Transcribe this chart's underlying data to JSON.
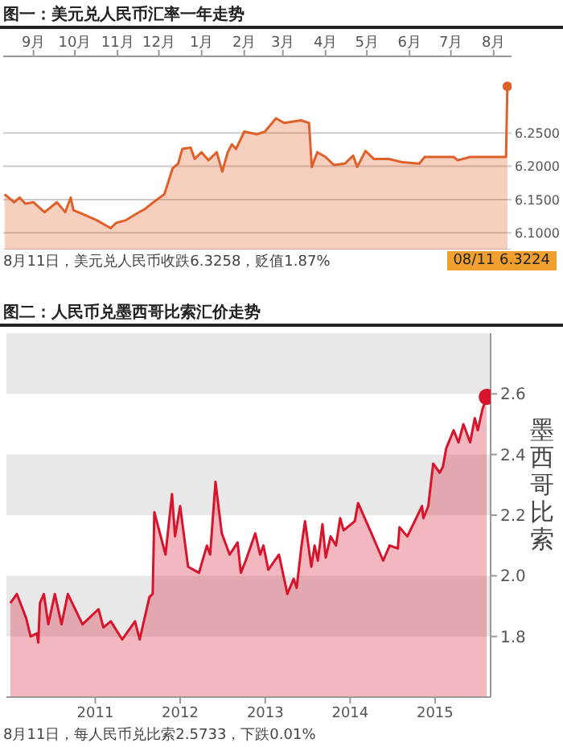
{
  "chart_data": [
    {
      "type": "area",
      "title": "图一：美元兑人民币汇率一年走势",
      "x": [
        "2014-08-11",
        "2014-08-18",
        "2014-08-22",
        "2014-08-26",
        "2014-09-01",
        "2014-09-09",
        "2014-09-18",
        "2014-09-24",
        "2014-09-28",
        "2014-09-30",
        "2014-10-08",
        "2014-10-17",
        "2014-10-27",
        "2014-10-31",
        "2014-11-07",
        "2014-11-15",
        "2014-11-21",
        "2014-11-27",
        "2014-12-05",
        "2014-12-11",
        "2014-12-15",
        "2014-12-18",
        "2014-12-24",
        "2014-12-27",
        "2015-01-01",
        "2015-01-06",
        "2015-01-12",
        "2015-01-16",
        "2015-01-20",
        "2015-01-23",
        "2015-01-26",
        "2015-02-01",
        "2015-02-10",
        "2015-02-16",
        "2015-02-24",
        "2015-03-02",
        "2015-03-14",
        "2015-03-20",
        "2015-03-22",
        "2015-03-26",
        "2015-04-01",
        "2015-04-07",
        "2015-04-15",
        "2015-04-21",
        "2015-04-24",
        "2015-04-30",
        "2015-05-06",
        "2015-05-17",
        "2015-05-27",
        "2015-06-08",
        "2015-06-12",
        "2015-07-03",
        "2015-07-06",
        "2015-07-15",
        "2015-08-10",
        "2015-08-11"
      ],
      "series": [
        {
          "color": "#e0602a",
          "values": [
            6.158,
            6.146,
            6.153,
            6.144,
            6.146,
            6.131,
            6.146,
            6.131,
            6.153,
            6.134,
            6.127,
            6.119,
            6.107,
            6.115,
            6.119,
            6.129,
            6.136,
            6.146,
            6.158,
            6.197,
            6.204,
            6.226,
            6.228,
            6.211,
            6.221,
            6.209,
            6.221,
            6.192,
            6.221,
            6.233,
            6.226,
            6.252,
            6.248,
            6.252,
            6.272,
            6.265,
            6.269,
            6.265,
            6.199,
            6.221,
            6.214,
            6.202,
            6.204,
            6.216,
            6.199,
            6.223,
            6.211,
            6.211,
            6.206,
            6.204,
            6.214,
            6.214,
            6.209,
            6.214,
            6.214,
            6.32
          ]
        }
      ],
      "xlim": [
        "2014-08-10",
        "2015-08-14"
      ],
      "xticks": [
        {
          "value": "2014-09-01",
          "label": "9月"
        },
        {
          "value": "2014-10-01",
          "label": "10月"
        },
        {
          "value": "2014-11-01",
          "label": "11月"
        },
        {
          "value": "2014-12-01",
          "label": "12月"
        },
        {
          "value": "2015-01-01",
          "label": "1月"
        },
        {
          "value": "2015-02-01",
          "label": "2月"
        },
        {
          "value": "2015-03-01",
          "label": "3月"
        },
        {
          "value": "2015-04-01",
          "label": "4月"
        },
        {
          "value": "2015-05-01",
          "label": "5月"
        },
        {
          "value": "2015-06-01",
          "label": "6月"
        },
        {
          "value": "2015-07-01",
          "label": "7月"
        },
        {
          "value": "2015-08-01",
          "label": "8月"
        }
      ],
      "ylim": [
        6.075,
        6.365
      ],
      "yticks": [
        {
          "value": 6.1,
          "label": "6.1000"
        },
        {
          "value": 6.15,
          "label": "6.1500"
        },
        {
          "value": 6.2,
          "label": "6.2000"
        },
        {
          "value": 6.25,
          "label": "6.2500"
        }
      ],
      "grid": "y",
      "annotations": [
        "8月11日，美元兑人民币收跌6.3258，贬值1.87%",
        "08/11 6.3224"
      ]
    },
    {
      "type": "area",
      "title": "图二：人民币兑墨西哥比索汇价走势",
      "ylabel": "墨西哥比索",
      "x": [
        "2010-01-01",
        "2010-01-29",
        "2010-03-10",
        "2010-03-29",
        "2010-04-25",
        "2010-05-01",
        "2010-05-08",
        "2010-05-25",
        "2010-06-13",
        "2010-07-11",
        "2010-08-09",
        "2010-09-05",
        "2010-11-07",
        "2011-01-15",
        "2011-02-05",
        "2011-03-09",
        "2011-04-27",
        "2011-06-21",
        "2011-07-11",
        "2011-08-22",
        "2011-09-05",
        "2011-09-12",
        "2011-10-30",
        "2011-11-27",
        "2011-12-10",
        "2012-01-01",
        "2012-02-04",
        "2012-03-22",
        "2012-04-25",
        "2012-05-09",
        "2012-06-01",
        "2012-06-28",
        "2012-08-01",
        "2012-09-04",
        "2012-09-18",
        "2012-10-09",
        "2012-11-19",
        "2012-12-10",
        "2012-12-24",
        "2013-01-14",
        "2013-03-01",
        "2013-04-06",
        "2013-05-03",
        "2013-05-16",
        "2013-06-06",
        "2013-06-21",
        "2013-07-18",
        "2013-08-01",
        "2013-08-15",
        "2013-09-04",
        "2013-09-18",
        "2013-10-09",
        "2013-11-01",
        "2013-11-19",
        "2013-12-04",
        "2014-01-21",
        "2014-02-04",
        "2014-03-28",
        "2014-05-23",
        "2014-06-20",
        "2014-07-25",
        "2014-08-01",
        "2014-09-04",
        "2014-11-06",
        "2014-11-12",
        "2014-12-03",
        "2014-12-24",
        "2015-01-21",
        "2015-02-04",
        "2015-02-18",
        "2015-03-22",
        "2015-04-12",
        "2015-05-03",
        "2015-06-01",
        "2015-06-21",
        "2015-07-04",
        "2015-07-24",
        "2015-08-11"
      ],
      "series": [
        {
          "color": "#d7142b",
          "values": [
            1.91,
            1.94,
            1.86,
            1.8,
            1.81,
            1.78,
            1.91,
            1.94,
            1.84,
            1.94,
            1.84,
            1.94,
            1.84,
            1.89,
            1.83,
            1.85,
            1.79,
            1.85,
            1.79,
            1.93,
            1.94,
            2.21,
            2.07,
            2.27,
            2.13,
            2.23,
            2.03,
            2.01,
            2.1,
            2.07,
            2.31,
            2.14,
            2.07,
            2.11,
            2.01,
            2.05,
            2.14,
            2.07,
            2.1,
            2.02,
            2.07,
            1.94,
            1.99,
            1.96,
            2.1,
            2.18,
            2.03,
            2.1,
            2.05,
            2.17,
            2.06,
            2.13,
            2.1,
            2.19,
            2.15,
            2.18,
            2.24,
            2.15,
            2.05,
            2.1,
            2.09,
            2.16,
            2.13,
            2.23,
            2.19,
            2.23,
            2.37,
            2.34,
            2.36,
            2.42,
            2.48,
            2.44,
            2.5,
            2.44,
            2.52,
            2.48,
            2.55,
            2.59
          ]
        }
      ],
      "xlim": [
        "2009-12-15",
        "2015-08-28"
      ],
      "xticks": [
        "2011",
        "2012",
        "2013",
        "2014",
        "2015"
      ],
      "ylim": [
        1.6,
        2.8
      ],
      "yticks": [
        1.8,
        {
          "value": 2,
          "label": "2.0"
        },
        2.2,
        2.4,
        2.6
      ],
      "bands": [
        {
          "axis": "y",
          "from": 1.8,
          "to": 2.0,
          "color": "#e8e8e8"
        },
        {
          "axis": "y",
          "from": 2.2,
          "to": 2.4,
          "color": "#e8e8e8"
        },
        {
          "axis": "y",
          "from": 2.6,
          "to": 2.8,
          "color": "#e8e8e8"
        }
      ],
      "annotations": [
        "8月11日，每人民币兑比索2.5733，下跌0.01%"
      ]
    }
  ]
}
